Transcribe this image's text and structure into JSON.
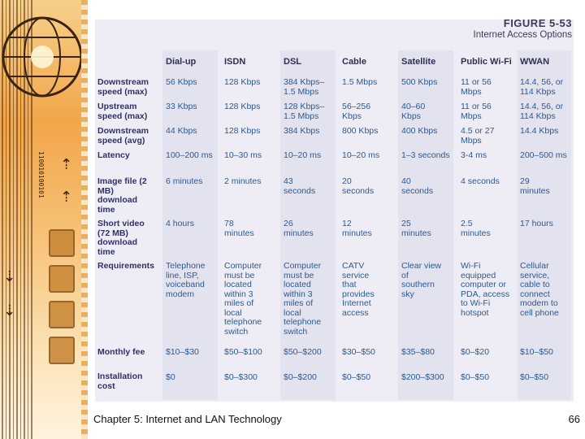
{
  "figure": {
    "number": "FIGURE 5-53",
    "title": "Internet Access Options"
  },
  "columns": [
    "Dial-up",
    "ISDN",
    "DSL",
    "Cable",
    "Satellite",
    "Public Wi-Fi",
    "WWAN"
  ],
  "rows": [
    {
      "label": "Downstream speed (max)",
      "values": [
        "56 Kbps",
        "128 Kbps",
        "384 Kbps– 1.5 Mbps",
        "1.5 Mbps",
        "500 Kbps",
        "11 or 56 Mbps",
        "14.4, 56, or 114 Kbps"
      ]
    },
    {
      "label": "Upstream speed (max)",
      "values": [
        "33 Kbps",
        "128 Kbps",
        "128 Kbps– 1.5 Mbps",
        "56–256 Kbps",
        "40–60 Kbps",
        "11 or 56 Mbps",
        "14.4, 56, or 114 Kbps"
      ]
    },
    {
      "label": "Downstream speed (avg)",
      "values": [
        "44 Kbps",
        "128 Kbps",
        "384 Kbps",
        "800 Kbps",
        "400 Kbps",
        "4.5 or 27 Mbps",
        "14.4 Kbps"
      ]
    },
    {
      "label": "Latency",
      "values": [
        "100–200 ms",
        "10–30 ms",
        "10–20 ms",
        "10–20 ms",
        "1–3 seconds",
        "3-4 ms",
        "200–500 ms"
      ]
    },
    {
      "label": "Image file (2 MB) download time",
      "values": [
        "6 minutes",
        "2 minutes",
        "43 seconds",
        "20 seconds",
        "40 seconds",
        "4 seconds",
        "29 minutes"
      ]
    },
    {
      "label": "Short video (72 MB) download time",
      "values": [
        "4 hours",
        "78 minutes",
        "26 minutes",
        "12 minutes",
        "25 minutes",
        "2.5 minutes",
        "17 hours"
      ]
    },
    {
      "label": "Requirements",
      "values": [
        "Telephone line, ISP, voiceband modem",
        "Computer must be located within 3 miles of local telephone switch",
        "Computer must be located within 3 miles of local telephone switch",
        "CATV service that provides Internet access",
        "Clear view of southern sky",
        "Wi-Fi equipped computer or PDA, access to Wi-Fi hotspot",
        "Cellular service, cable to connect modem to cell phone"
      ]
    },
    {
      "label": "Monthly fee",
      "values": [
        "$10–$30",
        "$50–$100",
        "$50–$200",
        "$30–$50",
        "$35–$80",
        "$0–$20",
        "$10–$50"
      ]
    },
    {
      "label": "Installation cost",
      "values": [
        "$0",
        "$0–$300",
        "$0–$200",
        "$0–$50",
        "$200–$300",
        "$0–$50",
        "$0–$50"
      ]
    }
  ],
  "footer": {
    "text": "Chapter 5: Internet and LAN Technology",
    "page": "66"
  },
  "decoration": {
    "binary_text": "110010100101",
    "icons": [
      "globe-icon",
      "monitor-icon",
      "arrow-icon"
    ]
  },
  "colors": {
    "panel": "#eeedf6",
    "row_label": "#2f2f6a",
    "cell_text": "#2c5a8f",
    "accent_orange": "#f2a64a"
  }
}
